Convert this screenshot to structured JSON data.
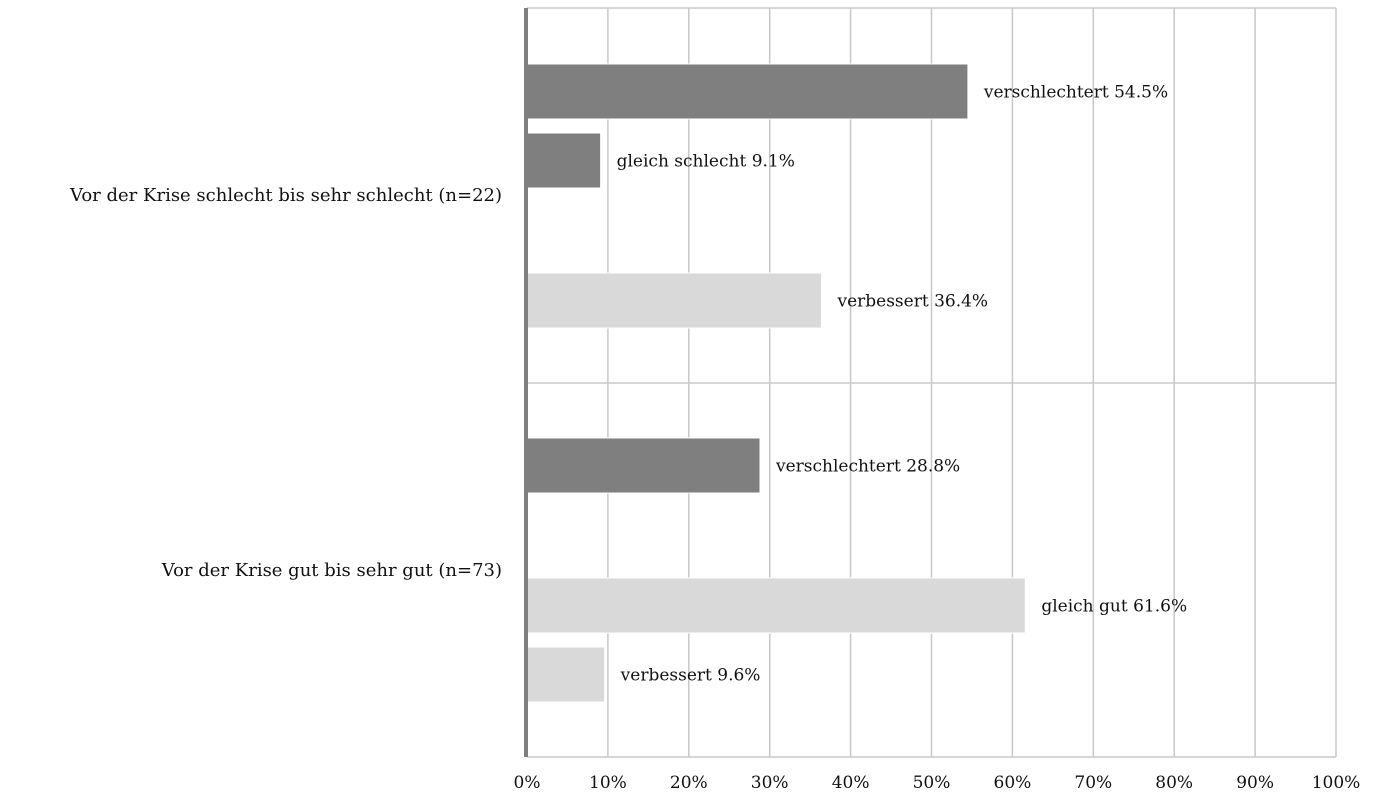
{
  "chart_data": {
    "type": "bar",
    "orientation": "horizontal",
    "xlim": [
      0,
      100
    ],
    "xticks": [
      "0%",
      "10%",
      "20%",
      "30%",
      "40%",
      "50%",
      "60%",
      "70%",
      "80%",
      "90%",
      "100%"
    ],
    "grid": true,
    "legend": "none",
    "colors": {
      "dark": "#7f7f7f",
      "light": "#d9d9d9",
      "grid": "#c8c8c8",
      "axis": "#7f7f7f"
    },
    "groups": [
      {
        "label": "Vor der Krise schlecht bis sehr schlecht (n=22)",
        "bars": [
          {
            "label": "verschlechtert 54.5%",
            "value": 54.5,
            "color": "dark"
          },
          {
            "label": "gleich schlecht 9.1%",
            "value": 9.1,
            "color": "dark"
          },
          {
            "label": "verbessert 36.4%",
            "value": 36.4,
            "color": "light"
          }
        ]
      },
      {
        "label": "Vor der Krise gut bis sehr gut (n=73)",
        "bars": [
          {
            "label": "verschlechtert 28.8%",
            "value": 28.8,
            "color": "dark"
          },
          {
            "label": "gleich gut 61.6%",
            "value": 61.6,
            "color": "light"
          },
          {
            "label": "verbessert 9.6%",
            "value": 9.6,
            "color": "light"
          }
        ]
      }
    ]
  }
}
